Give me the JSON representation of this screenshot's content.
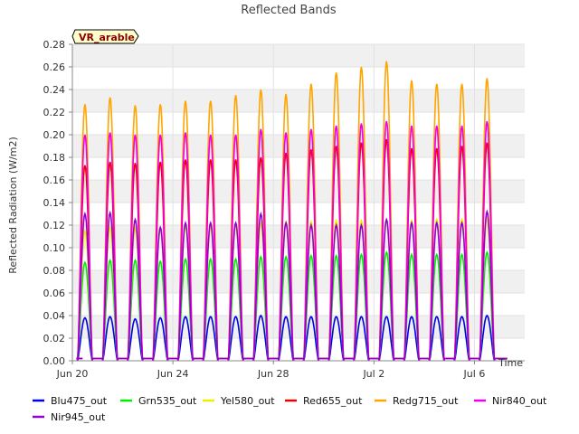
{
  "chart_data": {
    "type": "line",
    "title": "Reflected Bands",
    "ylabel": "Reflected Radiation (W/m2)",
    "xlabel": "Time",
    "tag": "VR_arable",
    "ylim": [
      0,
      0.28
    ],
    "yticks": [
      0.0,
      0.02,
      0.04,
      0.06,
      0.08,
      0.1,
      0.12,
      0.14,
      0.16,
      0.18,
      0.2,
      0.22,
      0.24,
      0.26,
      0.28
    ],
    "xlim_days": [
      0,
      18
    ],
    "xticks": [
      {
        "day": 0,
        "label": "Jun 20"
      },
      {
        "day": 4,
        "label": "Jun 24"
      },
      {
        "day": 8,
        "label": "Jun 28"
      },
      {
        "day": 12,
        "label": "Jul 2"
      },
      {
        "day": 16,
        "label": "Jul 6"
      }
    ],
    "day_peaks_x": [
      0.5,
      1.5,
      2.5,
      3.5,
      4.5,
      5.5,
      6.5,
      7.5,
      8.5,
      9.5,
      10.5,
      11.5,
      12.5,
      13.5,
      14.5,
      15.5,
      16.5
    ],
    "series": [
      {
        "name": "Blu475_out",
        "color": "#0000ee",
        "peaks": [
          0.038,
          0.039,
          0.037,
          0.038,
          0.039,
          0.039,
          0.039,
          0.04,
          0.039,
          0.039,
          0.039,
          0.039,
          0.039,
          0.039,
          0.039,
          0.039,
          0.04
        ]
      },
      {
        "name": "Grn535_out",
        "color": "#00ee00",
        "peaks": [
          0.087,
          0.089,
          0.089,
          0.088,
          0.09,
          0.09,
          0.09,
          0.092,
          0.092,
          0.093,
          0.093,
          0.094,
          0.096,
          0.094,
          0.094,
          0.094,
          0.096
        ]
      },
      {
        "name": "Yel580_out",
        "color": "#eeee00",
        "peaks": [
          0.115,
          0.118,
          0.118,
          0.117,
          0.119,
          0.119,
          0.12,
          0.122,
          0.123,
          0.123,
          0.124,
          0.124,
          0.124,
          0.124,
          0.125,
          0.125,
          0.126
        ]
      },
      {
        "name": "Red655_out",
        "color": "#ee0000",
        "peaks": [
          0.173,
          0.176,
          0.175,
          0.176,
          0.178,
          0.178,
          0.178,
          0.18,
          0.184,
          0.187,
          0.19,
          0.193,
          0.196,
          0.188,
          0.188,
          0.19,
          0.193
        ]
      },
      {
        "name": "Redg715_out",
        "color": "#ffa500",
        "peaks": [
          0.227,
          0.233,
          0.226,
          0.227,
          0.23,
          0.23,
          0.235,
          0.24,
          0.236,
          0.245,
          0.255,
          0.26,
          0.265,
          0.248,
          0.245,
          0.245,
          0.25
        ]
      },
      {
        "name": "Nir840_out",
        "color": "#ee00ee",
        "peaks": [
          0.2,
          0.202,
          0.2,
          0.2,
          0.202,
          0.2,
          0.2,
          0.205,
          0.202,
          0.205,
          0.208,
          0.21,
          0.212,
          0.208,
          0.208,
          0.208,
          0.212
        ]
      },
      {
        "name": "Nir945_out",
        "color": "#9400d3",
        "peaks": [
          0.13,
          0.131,
          0.125,
          0.118,
          0.122,
          0.122,
          0.122,
          0.13,
          0.122,
          0.12,
          0.12,
          0.12,
          0.125,
          0.122,
          0.122,
          0.122,
          0.132
        ]
      }
    ],
    "grid": true,
    "legend_position": "bottom"
  }
}
